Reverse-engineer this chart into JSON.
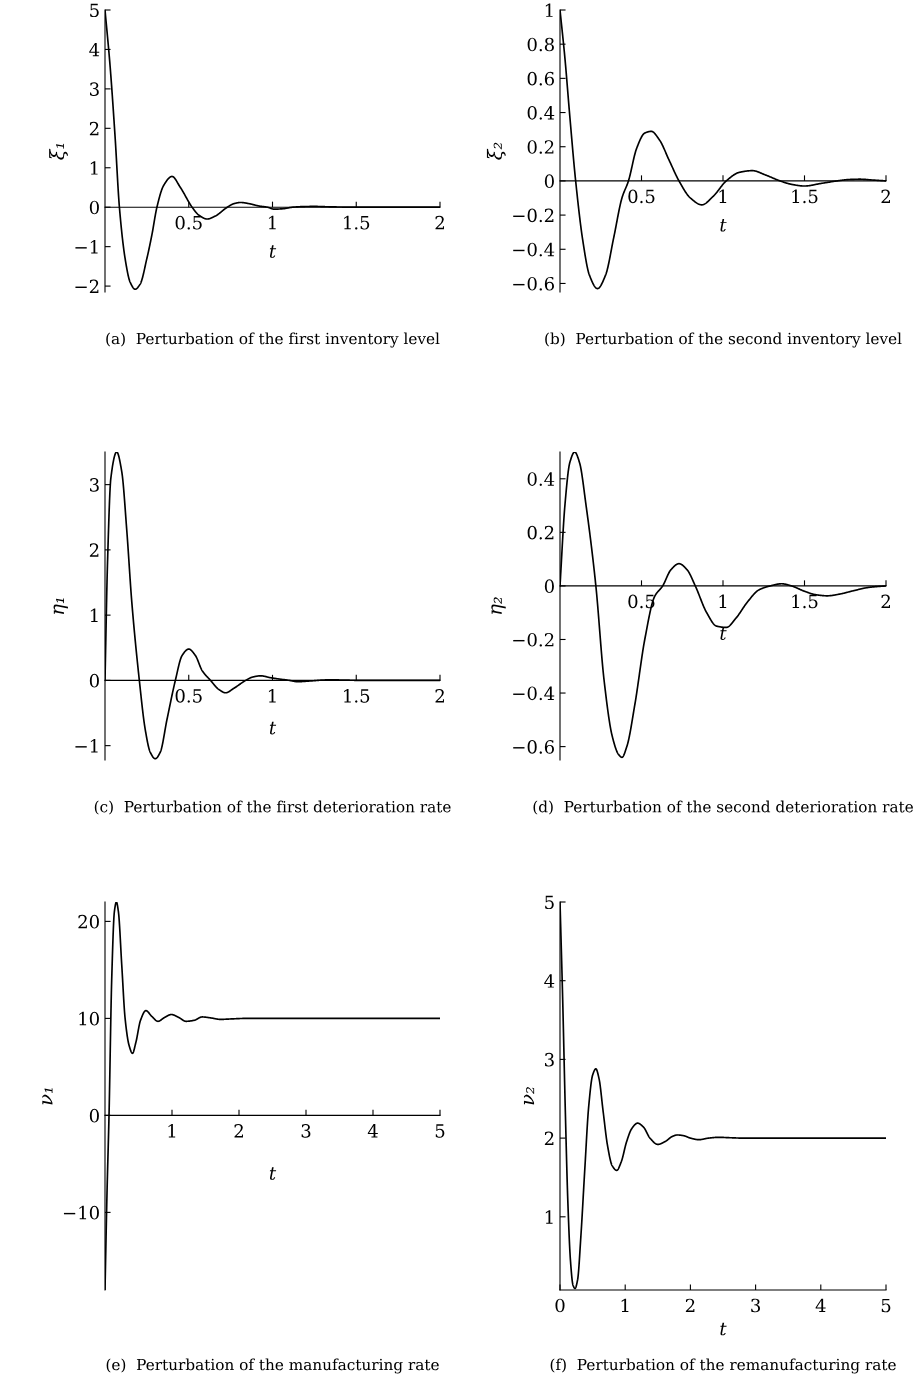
{
  "chart_data": [
    {
      "type": "line",
      "title": "(a)  Perturbation of the first inventory level",
      "xlabel": "t",
      "ylabel": "ξ₁",
      "xlim": [
        0,
        2
      ],
      "ylim": [
        -2.15,
        5
      ],
      "xticks": [
        0.5,
        1,
        1.5,
        2
      ],
      "yticks": [
        -2,
        -1,
        0,
        1,
        2,
        3,
        4,
        5
      ],
      "grid": false,
      "legend": false,
      "series": [
        {
          "color": "#000000",
          "x": [
            0,
            0.03,
            0.06,
            0.086,
            0.12,
            0.15,
            0.18,
            0.21,
            0.25,
            0.28,
            0.31,
            0.35,
            0.4,
            0.45,
            0.52,
            0.56,
            0.61,
            0.66,
            0.73,
            0.77,
            0.81,
            0.86,
            0.92,
            0.97,
            1.01,
            1.06,
            1.12,
            1.18,
            1.25,
            1.32,
            1.4,
            1.5,
            1.7,
            2
          ],
          "values": [
            5,
            3.6,
            1.8,
            0,
            -1.3,
            -1.9,
            -2.08,
            -1.95,
            -1.3,
            -0.7,
            0,
            0.55,
            0.78,
            0.5,
            0,
            -0.2,
            -0.3,
            -0.22,
            0,
            0.09,
            0.12,
            0.09,
            0.03,
            0,
            -0.05,
            -0.04,
            0,
            0.015,
            0.02,
            0.012,
            0.005,
            0,
            0,
            0
          ]
        }
      ]
    },
    {
      "type": "line",
      "title": "(b)  Perturbation of the second inventory level",
      "xlabel": "t",
      "ylabel": "ξ₂",
      "xlim": [
        0,
        2
      ],
      "ylim": [
        -0.65,
        1
      ],
      "xticks": [
        0.5,
        1,
        1.5,
        2
      ],
      "yticks": [
        -0.6,
        -0.4,
        -0.2,
        0,
        0.2,
        0.4,
        0.6,
        0.8,
        1
      ],
      "grid": false,
      "legend": false,
      "series": [
        {
          "color": "#000000",
          "x": [
            0,
            0.03,
            0.06,
            0.096,
            0.14,
            0.18,
            0.23,
            0.28,
            0.33,
            0.38,
            0.42,
            0.47,
            0.52,
            0.56,
            0.61,
            0.67,
            0.73,
            0.8,
            0.87,
            0.94,
            1.02,
            1.1,
            1.18,
            1.26,
            1.35,
            1.42,
            1.5,
            1.6,
            1.7,
            1.77,
            1.84,
            1.92,
            2
          ],
          "values": [
            1,
            0.72,
            0.38,
            0,
            -0.35,
            -0.55,
            -0.63,
            -0.55,
            -0.33,
            -0.1,
            0,
            0.19,
            0.28,
            0.29,
            0.24,
            0.12,
            0,
            -0.1,
            -0.14,
            -0.09,
            0,
            0.05,
            0.06,
            0.035,
            0,
            -0.02,
            -0.03,
            -0.015,
            0,
            0.008,
            0.01,
            0.005,
            0
          ]
        }
      ]
    },
    {
      "type": "line",
      "title": "(c)  Perturbation of the first deterioration rate",
      "xlabel": "t",
      "ylabel": "η₁",
      "xlim": [
        0,
        2
      ],
      "ylim": [
        -1.22,
        3.5
      ],
      "xticks": [
        0.5,
        1,
        1.5,
        2
      ],
      "yticks": [
        -1,
        0,
        1,
        2,
        3
      ],
      "grid": false,
      "legend": false,
      "series": [
        {
          "color": "#000000",
          "x": [
            0,
            0.015,
            0.035,
            0.07,
            0.1,
            0.13,
            0.16,
            0.205,
            0.24,
            0.27,
            0.3,
            0.33,
            0.37,
            0.42,
            0.46,
            0.5,
            0.54,
            0.58,
            0.63,
            0.68,
            0.72,
            0.77,
            0.84,
            0.88,
            0.93,
            0.99,
            1.1,
            1.15,
            1.22,
            1.3,
            1.35,
            1.42,
            1.55,
            2
          ],
          "values": [
            0,
            1.8,
            3.1,
            3.5,
            3.2,
            2.3,
            1.2,
            0,
            -0.75,
            -1.1,
            -1.2,
            -1.1,
            -0.6,
            0,
            0.38,
            0.48,
            0.38,
            0.15,
            0,
            -0.14,
            -0.19,
            -0.12,
            0,
            0.05,
            0.07,
            0.04,
            0,
            -0.02,
            -0.01,
            0.005,
            0.01,
            0.005,
            0,
            0
          ]
        }
      ]
    },
    {
      "type": "line",
      "title": "(d)  Perturbation of the second deterioration rate",
      "xlabel": "t",
      "ylabel": "η₂",
      "xlim": [
        0,
        2
      ],
      "ylim": [
        -0.65,
        0.5
      ],
      "xticks": [
        0.5,
        1,
        1.5,
        2
      ],
      "yticks": [
        -0.6,
        -0.4,
        -0.2,
        0,
        0.2,
        0.4
      ],
      "grid": false,
      "legend": false,
      "series": [
        {
          "color": "#000000",
          "x": [
            0,
            0.03,
            0.06,
            0.09,
            0.12,
            0.16,
            0.22,
            0.27,
            0.32,
            0.36,
            0.38,
            0.41,
            0.46,
            0.52,
            0.58,
            0.63,
            0.68,
            0.73,
            0.78,
            0.83,
            0.9,
            0.96,
            1.02,
            1.08,
            1.15,
            1.22,
            1.29,
            1.36,
            1.42,
            1.5,
            1.57,
            1.64,
            1.72,
            1.8,
            1.9,
            2
          ],
          "values": [
            0,
            0.3,
            0.46,
            0.5,
            0.46,
            0.3,
            0,
            -0.35,
            -0.56,
            -0.63,
            -0.64,
            -0.6,
            -0.44,
            -0.2,
            -0.04,
            0,
            0.06,
            0.083,
            0.06,
            0,
            -0.1,
            -0.15,
            -0.155,
            -0.12,
            -0.06,
            -0.015,
            0,
            0.008,
            0,
            -0.02,
            -0.033,
            -0.037,
            -0.03,
            -0.018,
            -0.005,
            0
          ]
        }
      ]
    },
    {
      "type": "line",
      "title": "(e)  Perturbation of the manufacturing rate",
      "xlabel": "t",
      "ylabel": "ν₁",
      "xlim": [
        0,
        5
      ],
      "ylim": [
        -18,
        22
      ],
      "xticks": [
        1,
        2,
        3,
        4,
        5
      ],
      "yticks": [
        -10,
        0,
        10,
        20
      ],
      "grid": false,
      "legend": false,
      "series": [
        {
          "color": "#000000",
          "x": [
            0,
            0.03,
            0.06,
            0.1,
            0.14,
            0.17,
            0.2,
            0.25,
            0.3,
            0.36,
            0.41,
            0.46,
            0.53,
            0.61,
            0.7,
            0.79,
            0.89,
            0.99,
            1.1,
            1.21,
            1.33,
            1.45,
            1.58,
            1.72,
            1.9,
            2.1,
            2.5,
            3,
            4,
            5
          ],
          "values": [
            -18,
            -8,
            0,
            14,
            21,
            22,
            21,
            15.5,
            10,
            7.2,
            6.4,
            7.5,
            9.8,
            10.8,
            10.2,
            9.7,
            10.1,
            10.4,
            10.1,
            9.7,
            9.8,
            10.15,
            10.05,
            9.9,
            9.95,
            10,
            10,
            10,
            10,
            10
          ]
        }
      ]
    },
    {
      "type": "line",
      "title": "(f)  Perturbation of the remanufacturing rate",
      "xlabel": "t",
      "ylabel": "ν₂",
      "xlim": [
        0,
        5
      ],
      "ylim": [
        0.07,
        5
      ],
      "xticks": [
        0,
        1,
        2,
        3,
        4,
        5
      ],
      "yticks": [
        1,
        2,
        3,
        4,
        5
      ],
      "grid": false,
      "legend": false,
      "series": [
        {
          "color": "#000000",
          "x": [
            0,
            0.04,
            0.08,
            0.12,
            0.16,
            0.2,
            0.23,
            0.27,
            0.32,
            0.38,
            0.44,
            0.5,
            0.55,
            0.6,
            0.66,
            0.73,
            0.8,
            0.87,
            0.94,
            1.02,
            1.1,
            1.19,
            1.28,
            1.38,
            1.5,
            1.62,
            1.72,
            1.8,
            1.9,
            2.0,
            2.13,
            2.28,
            2.43,
            2.6,
            2.8,
            3.2,
            4,
            5
          ],
          "values": [
            5,
            3.8,
            2.4,
            1.2,
            0.45,
            0.13,
            0.09,
            0.2,
            0.75,
            1.6,
            2.4,
            2.8,
            2.88,
            2.75,
            2.35,
            1.9,
            1.65,
            1.59,
            1.7,
            1.95,
            2.12,
            2.19,
            2.14,
            2.0,
            1.92,
            1.96,
            2.02,
            2.04,
            2.03,
            2.0,
            1.98,
            2.0,
            2.01,
            2.005,
            2.0,
            2,
            2,
            2
          ]
        }
      ]
    }
  ]
}
